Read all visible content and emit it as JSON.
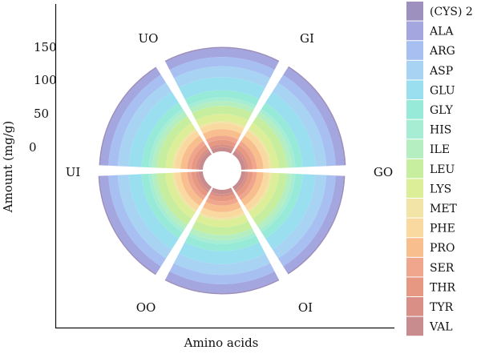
{
  "chart_data": {
    "type": "polar-stacked-bar",
    "xlabel": "Amino acids",
    "ylabel": "Amount (mg/g)",
    "radial_ticks": [
      "0",
      "50",
      "100",
      "150"
    ],
    "categories": [
      "GI",
      "GO",
      "OI",
      "OO",
      "UI",
      "UO"
    ],
    "legend_position": "right",
    "series": [
      {
        "name": "(CYS) 2",
        "color": "#9D90BF",
        "values": [
          2,
          2,
          2,
          2,
          2,
          2
        ]
      },
      {
        "name": "ALA",
        "color": "#A3A6DF",
        "values": [
          12,
          11,
          12,
          12,
          11,
          12
        ]
      },
      {
        "name": "ARG",
        "color": "#A8BFF2",
        "values": [
          13,
          13,
          13,
          13,
          13,
          13
        ]
      },
      {
        "name": "ASP",
        "color": "#A9D3F3",
        "values": [
          15,
          15,
          15,
          15,
          15,
          15
        ]
      },
      {
        "name": "GLU",
        "color": "#9ADFF0",
        "values": [
          18,
          18,
          18,
          18,
          18,
          18
        ]
      },
      {
        "name": "GLY",
        "color": "#97EAD8",
        "values": [
          10,
          10,
          10,
          10,
          10,
          10
        ]
      },
      {
        "name": "HIS",
        "color": "#A7EDD3",
        "values": [
          5,
          5,
          5,
          5,
          5,
          5
        ]
      },
      {
        "name": "ILE",
        "color": "#B5EEC0",
        "values": [
          7,
          7,
          7,
          7,
          7,
          7
        ]
      },
      {
        "name": "LEU",
        "color": "#C7EE9E",
        "values": [
          11,
          11,
          11,
          11,
          11,
          11
        ]
      },
      {
        "name": "LYS",
        "color": "#DDEE99",
        "values": [
          10,
          10,
          10,
          10,
          10,
          10
        ]
      },
      {
        "name": "MET",
        "color": "#F2E3A6",
        "values": [
          3,
          3,
          3,
          3,
          3,
          3
        ]
      },
      {
        "name": "PHE",
        "color": "#F9D9A0",
        "values": [
          8,
          8,
          8,
          8,
          8,
          8
        ]
      },
      {
        "name": "PRO",
        "color": "#F8BE8E",
        "values": [
          9,
          9,
          9,
          9,
          9,
          9
        ]
      },
      {
        "name": "SER",
        "color": "#F0A58D",
        "values": [
          6,
          6,
          6,
          6,
          6,
          6
        ]
      },
      {
        "name": "THR",
        "color": "#E69882",
        "values": [
          6,
          6,
          6,
          6,
          6,
          6
        ]
      },
      {
        "name": "TYR",
        "color": "#D98F86",
        "values": [
          4,
          4,
          4,
          4,
          4,
          4
        ]
      },
      {
        "name": "VAL",
        "color": "#C98C8E",
        "values": [
          6,
          6,
          6,
          6,
          6,
          6
        ]
      }
    ]
  }
}
